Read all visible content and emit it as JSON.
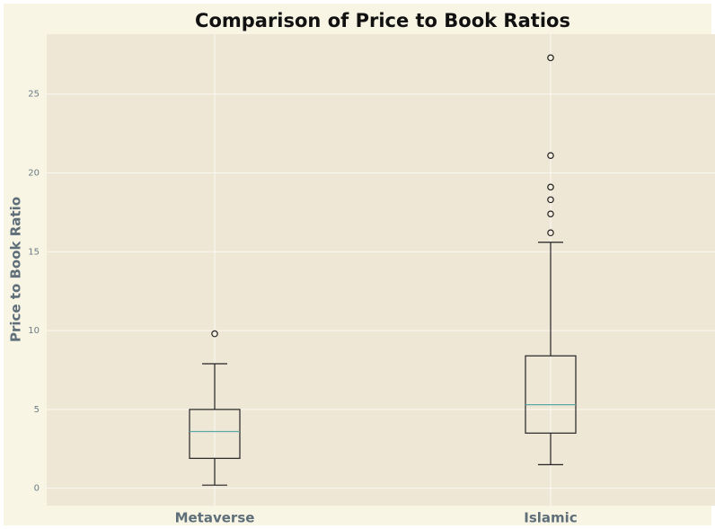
{
  "chart_data": {
    "type": "box",
    "title": "Comparison of Price to Book Ratios",
    "ylabel": "Price to Book Ratio",
    "categories": [
      "Metaverse",
      "Islamic"
    ],
    "boxes": [
      {
        "whislo": 0.2,
        "q1": 1.9,
        "med": 3.6,
        "q3": 5.0,
        "whishi": 7.9,
        "fliers": [
          9.8
        ]
      },
      {
        "whislo": 1.5,
        "q1": 3.5,
        "med": 5.3,
        "q3": 8.4,
        "whishi": 15.6,
        "fliers": [
          16.2,
          17.4,
          18.3,
          19.1,
          21.1,
          27.3
        ]
      }
    ],
    "box_color": "#222222",
    "median_color": "#5aa9a6",
    "ylim": [
      -1.1,
      28.8
    ],
    "yticks": [
      0,
      5,
      10,
      15,
      20,
      25
    ],
    "grid": true
  }
}
